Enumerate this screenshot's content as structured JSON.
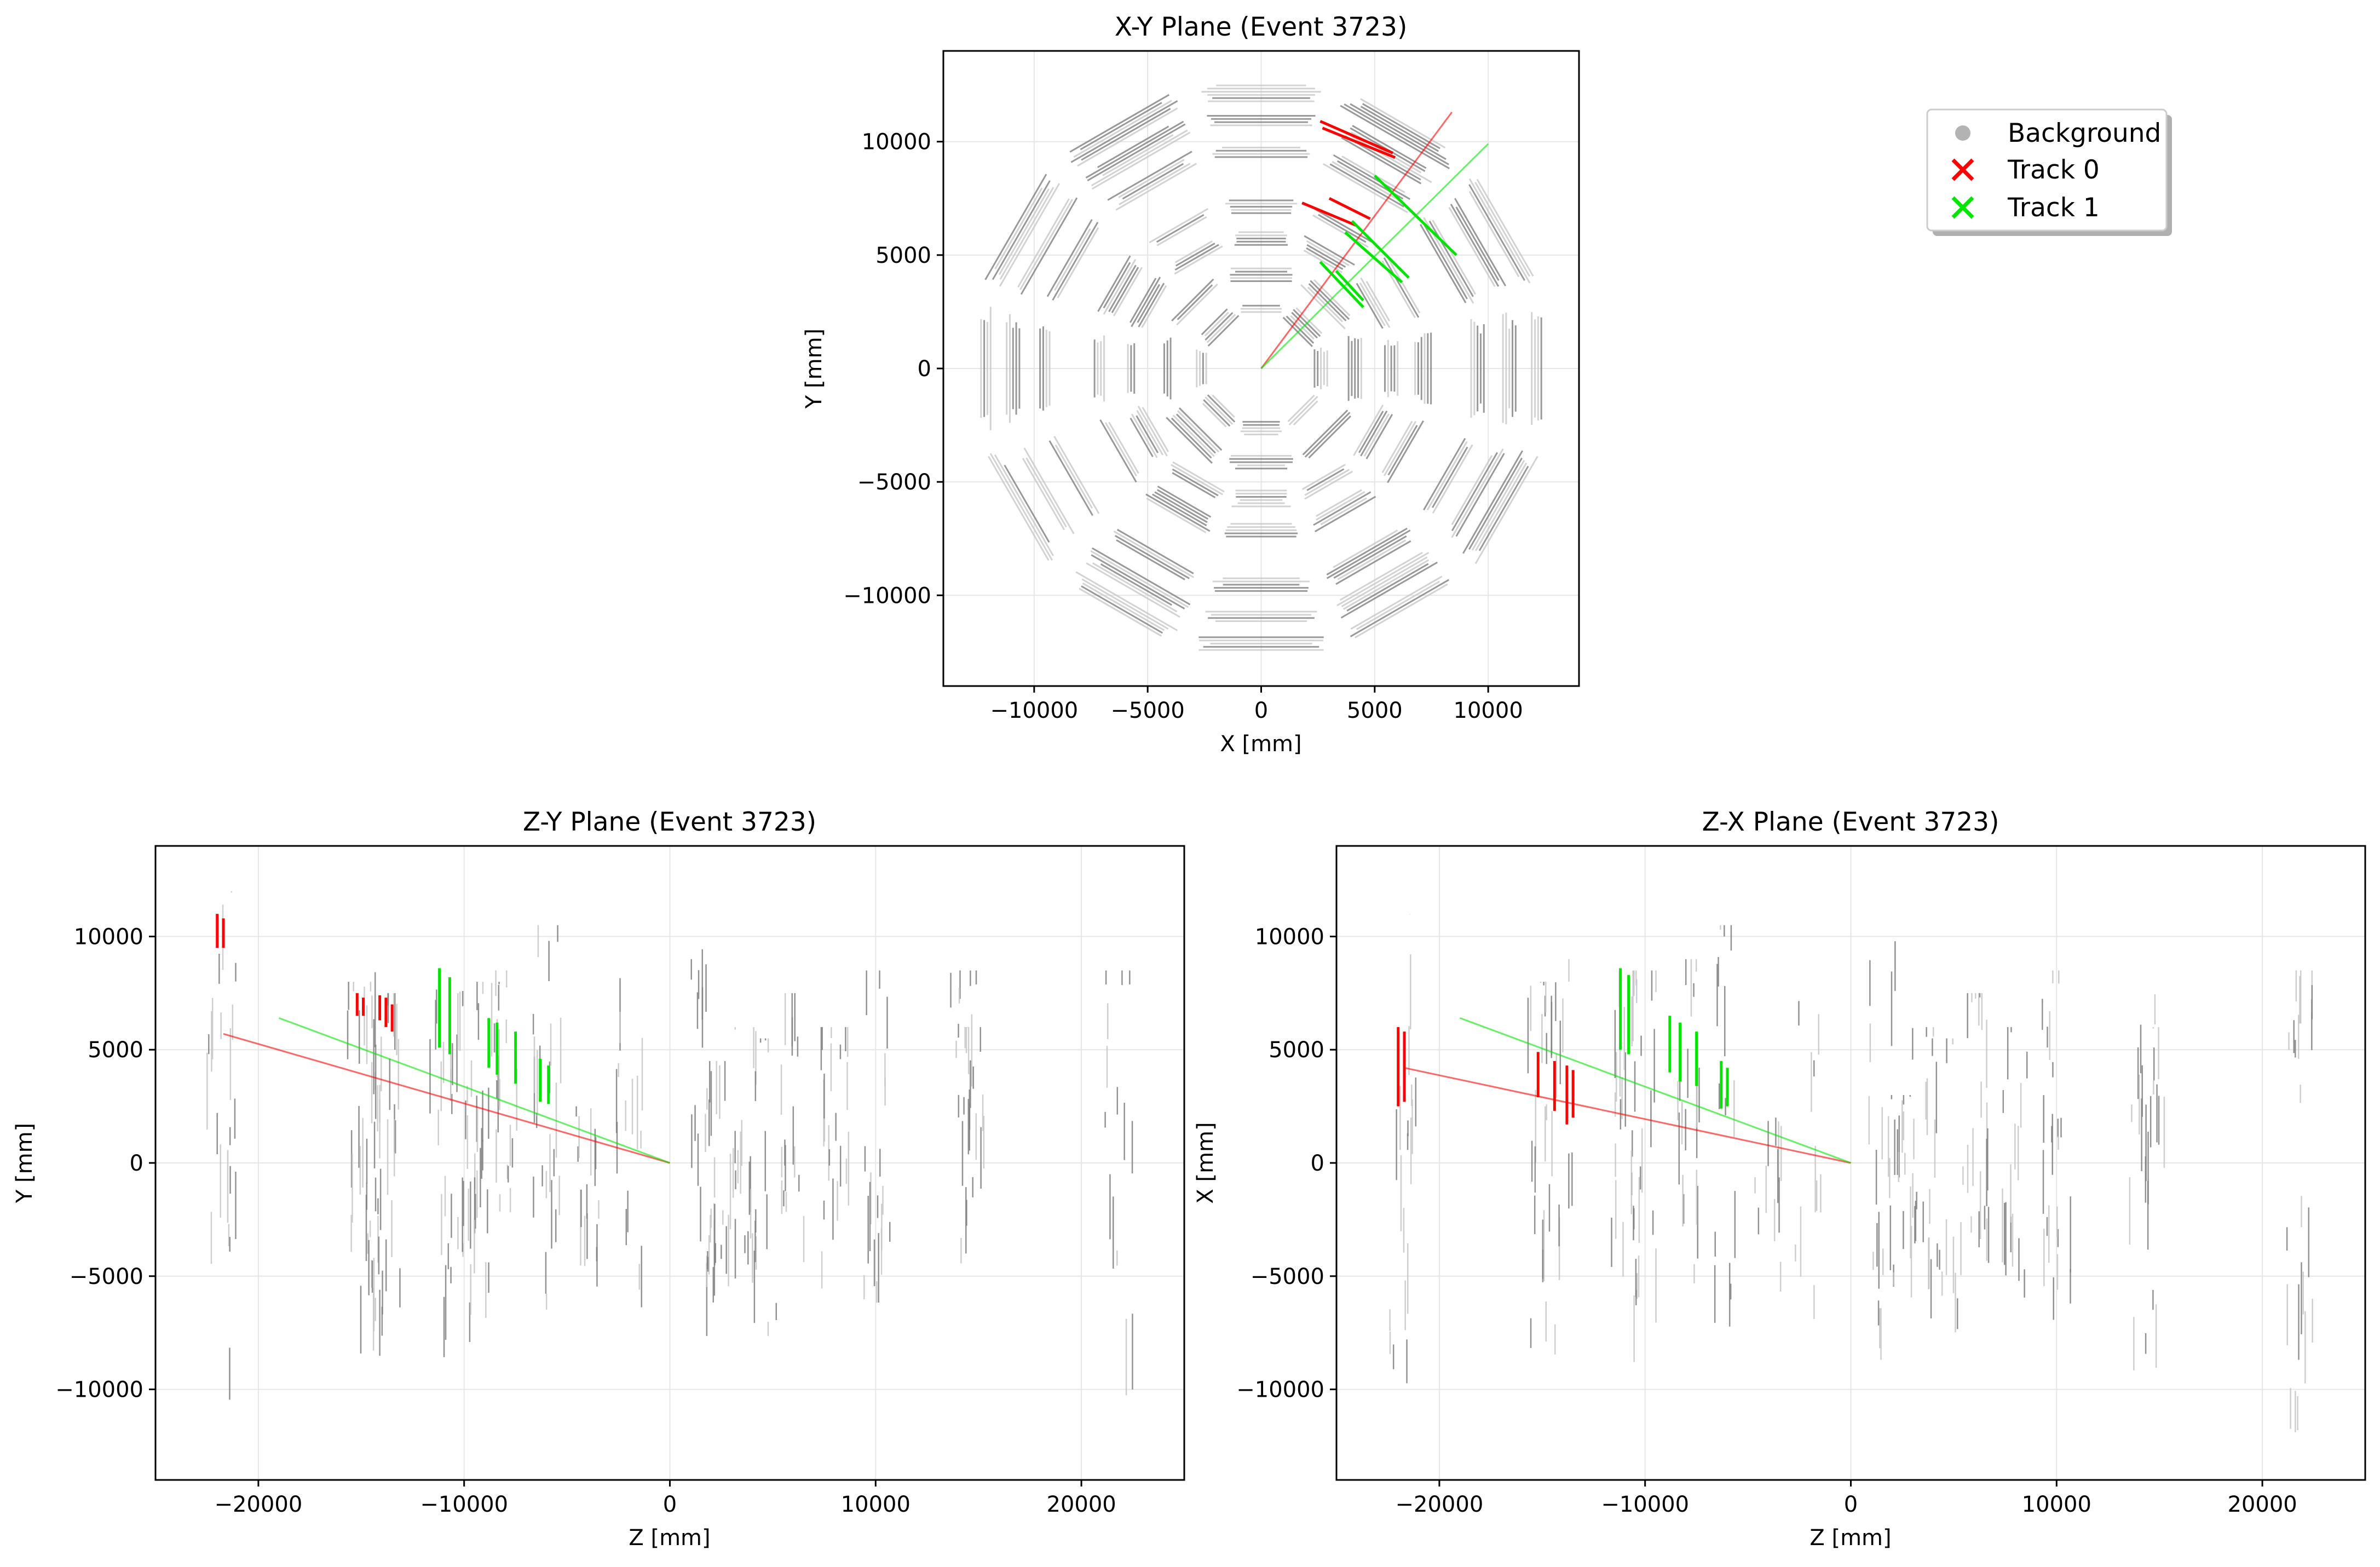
{
  "chart_data": [
    {
      "id": "xy",
      "type": "scatter",
      "title": "X-Y Plane (Event 3723)",
      "xlabel": "X [mm]",
      "ylabel": "Y [mm]",
      "xlim": [
        -14000,
        14000
      ],
      "ylim": [
        -14000,
        14000
      ],
      "xticks": [
        -10000,
        -5000,
        0,
        5000,
        10000
      ],
      "yticks": [
        -10000,
        -5000,
        0,
        5000,
        10000
      ],
      "xtick_labels": [
        "−10000",
        "−5000",
        "0",
        "5000",
        "10000"
      ],
      "ytick_labels": [
        "−10000",
        "−5000",
        "0",
        "5000",
        "10000"
      ],
      "grid": true,
      "background_rings": [
        {
          "n": 8,
          "r": 2700
        },
        {
          "n": 8,
          "r": 4200
        },
        {
          "n": 12,
          "r": 5800
        },
        {
          "n": 12,
          "r": 7200
        },
        {
          "n": 12,
          "r": 9600
        },
        {
          "n": 12,
          "r": 11000
        },
        {
          "n": 12,
          "r": 12200
        }
      ],
      "track_lines": [
        {
          "track": "Track 0",
          "from": [
            0,
            0
          ],
          "to": [
            8400,
            11300
          ]
        },
        {
          "track": "Track 1",
          "from": [
            0,
            0
          ],
          "to": [
            10000,
            9900
          ]
        }
      ],
      "track_segments": [
        {
          "track": "Track 0",
          "x1": 2600,
          "y1": 10900,
          "x2": 5800,
          "y2": 9500
        },
        {
          "track": "Track 0",
          "x1": 2700,
          "y1": 10600,
          "x2": 5900,
          "y2": 9300
        },
        {
          "track": "Track 0",
          "x1": 1800,
          "y1": 7300,
          "x2": 4200,
          "y2": 6300
        },
        {
          "track": "Track 0",
          "x1": 3000,
          "y1": 7500,
          "x2": 4800,
          "y2": 6600
        },
        {
          "track": "Track 1",
          "x1": 5000,
          "y1": 8500,
          "x2": 8600,
          "y2": 5000
        },
        {
          "track": "Track 1",
          "x1": 4000,
          "y1": 6500,
          "x2": 6500,
          "y2": 4000
        },
        {
          "track": "Track 1",
          "x1": 3700,
          "y1": 6000,
          "x2": 6200,
          "y2": 3800
        },
        {
          "track": "Track 1",
          "x1": 2600,
          "y1": 4700,
          "x2": 4500,
          "y2": 2700
        },
        {
          "track": "Track 1",
          "x1": 3300,
          "y1": 4300,
          "x2": 4500,
          "y2": 3000
        }
      ]
    },
    {
      "id": "zy",
      "type": "scatter",
      "title": "Z-Y Plane (Event 3723)",
      "xlabel": "Z [mm]",
      "ylabel": "Y [mm]",
      "xlim": [
        -25000,
        25000
      ],
      "ylim": [
        -14000,
        14000
      ],
      "xticks": [
        -20000,
        -10000,
        0,
        10000,
        20000
      ],
      "yticks": [
        -10000,
        -5000,
        0,
        5000,
        10000
      ],
      "xtick_labels": [
        "−20000",
        "−10000",
        "0",
        "10000",
        "20000"
      ],
      "ytick_labels": [
        "−10000",
        "−5000",
        "0",
        "5000",
        "10000"
      ],
      "grid": true,
      "track_lines": [
        {
          "track": "Track 0",
          "from": [
            0,
            0
          ],
          "to": [
            -21700,
            5700
          ]
        },
        {
          "track": "Track 1",
          "from": [
            0,
            0
          ],
          "to": [
            -19000,
            6400
          ]
        }
      ],
      "track_segments": [
        {
          "track": "Track 0",
          "z": -22000,
          "y1": 9500,
          "y2": 11000
        },
        {
          "track": "Track 0",
          "z": -21700,
          "y1": 9500,
          "y2": 10800
        },
        {
          "track": "Track 0",
          "z": -15200,
          "y1": 6500,
          "y2": 7500
        },
        {
          "track": "Track 0",
          "z": -14900,
          "y1": 6500,
          "y2": 7300
        },
        {
          "track": "Track 0",
          "z": -14100,
          "y1": 6300,
          "y2": 7400
        },
        {
          "track": "Track 0",
          "z": -13800,
          "y1": 6000,
          "y2": 7300
        },
        {
          "track": "Track 0",
          "z": -13500,
          "y1": 5800,
          "y2": 7000
        },
        {
          "track": "Track 1",
          "z": -11200,
          "y1": 5100,
          "y2": 8600
        },
        {
          "track": "Track 1",
          "z": -10700,
          "y1": 4800,
          "y2": 8200
        },
        {
          "track": "Track 1",
          "z": -8800,
          "y1": 4200,
          "y2": 6400
        },
        {
          "track": "Track 1",
          "z": -8400,
          "y1": 3900,
          "y2": 6200
        },
        {
          "track": "Track 1",
          "z": -7500,
          "y1": 3500,
          "y2": 5800
        },
        {
          "track": "Track 1",
          "z": -6300,
          "y1": 2700,
          "y2": 4600
        },
        {
          "track": "Track 1",
          "z": -5900,
          "y1": 2600,
          "y2": 4300
        }
      ],
      "background_columns": [
        {
          "z": -21800,
          "ymin": -10500,
          "ymax": 12000
        },
        {
          "z": -15000,
          "ymin": -9000,
          "ymax": 8000
        },
        {
          "z": -14200,
          "ymin": -9500,
          "ymax": 8500
        },
        {
          "z": -13800,
          "ymin": -8000,
          "ymax": 7500
        },
        {
          "z": -11000,
          "ymin": -9000,
          "ymax": 8500
        },
        {
          "z": -10000,
          "ymin": -8000,
          "ymax": 8500
        },
        {
          "z": -9000,
          "ymin": -7000,
          "ymax": 8000
        },
        {
          "z": -8000,
          "ymin": -6000,
          "ymax": 8500
        },
        {
          "z": -6000,
          "ymin": -8000,
          "ymax": 10500
        },
        {
          "z": -4000,
          "ymin": -6000,
          "ymax": 2500
        },
        {
          "z": -2000,
          "ymin": -7000,
          "ymax": 8500
        },
        {
          "z": 1500,
          "ymin": -9000,
          "ymax": 10500
        },
        {
          "z": 2500,
          "ymin": -6000,
          "ymax": 4500
        },
        {
          "z": 3500,
          "ymin": -7000,
          "ymax": 6000
        },
        {
          "z": 4500,
          "ymin": -8000,
          "ymax": 5500
        },
        {
          "z": 6000,
          "ymin": -5000,
          "ymax": 7500
        },
        {
          "z": 8000,
          "ymin": -6000,
          "ymax": 6000
        },
        {
          "z": 10000,
          "ymin": -7000,
          "ymax": 8500
        },
        {
          "z": 14200,
          "ymin": -5000,
          "ymax": 8500
        },
        {
          "z": 14600,
          "ymin": -4000,
          "ymax": 6000
        },
        {
          "z": 21800,
          "ymin": -10500,
          "ymax": 8500
        }
      ]
    },
    {
      "id": "zx",
      "type": "scatter",
      "title": "Z-X Plane (Event 3723)",
      "xlabel": "Z [mm]",
      "ylabel": "X [mm]",
      "xlim": [
        -25000,
        25000
      ],
      "ylim": [
        -14000,
        14000
      ],
      "xticks": [
        -20000,
        -10000,
        0,
        10000,
        20000
      ],
      "yticks": [
        -10000,
        -5000,
        0,
        5000,
        10000
      ],
      "xtick_labels": [
        "−20000",
        "−10000",
        "0",
        "10000",
        "20000"
      ],
      "ytick_labels": [
        "−10000",
        "−5000",
        "0",
        "5000",
        "10000"
      ],
      "grid": true,
      "track_lines": [
        {
          "track": "Track 0",
          "from": [
            0,
            0
          ],
          "to": [
            -21700,
            4200
          ]
        },
        {
          "track": "Track 1",
          "from": [
            0,
            0
          ],
          "to": [
            -19000,
            6400
          ]
        }
      ],
      "track_segments": [
        {
          "track": "Track 0",
          "z": -22000,
          "y1": 2500,
          "y2": 6000
        },
        {
          "track": "Track 0",
          "z": -21700,
          "y1": 2700,
          "y2": 5800
        },
        {
          "track": "Track 0",
          "z": -15200,
          "y1": 2900,
          "y2": 4900
        },
        {
          "track": "Track 0",
          "z": -14400,
          "y1": 2300,
          "y2": 4500
        },
        {
          "track": "Track 0",
          "z": -13800,
          "y1": 1700,
          "y2": 4300
        },
        {
          "track": "Track 0",
          "z": -13500,
          "y1": 2000,
          "y2": 4100
        },
        {
          "track": "Track 1",
          "z": -11200,
          "y1": 5000,
          "y2": 8600
        },
        {
          "track": "Track 1",
          "z": -10800,
          "y1": 4800,
          "y2": 8300
        },
        {
          "track": "Track 1",
          "z": -8800,
          "y1": 4000,
          "y2": 6500
        },
        {
          "track": "Track 1",
          "z": -8300,
          "y1": 3600,
          "y2": 6200
        },
        {
          "track": "Track 1",
          "z": -7500,
          "y1": 3400,
          "y2": 5800
        },
        {
          "track": "Track 1",
          "z": -6300,
          "y1": 2400,
          "y2": 4500
        },
        {
          "track": "Track 1",
          "z": -6000,
          "y1": 2500,
          "y2": 4200
        }
      ],
      "background_columns": [
        {
          "z": -21800,
          "ymin": -10500,
          "ymax": 11000
        },
        {
          "z": -15000,
          "ymin": -9000,
          "ymax": 8000
        },
        {
          "z": -14200,
          "ymin": -9500,
          "ymax": 9000
        },
        {
          "z": -11000,
          "ymin": -9000,
          "ymax": 8500
        },
        {
          "z": -10000,
          "ymin": -8000,
          "ymax": 8500
        },
        {
          "z": -8000,
          "ymin": -7000,
          "ymax": 9000
        },
        {
          "z": -6000,
          "ymin": -8000,
          "ymax": 10500
        },
        {
          "z": -4000,
          "ymin": -6000,
          "ymax": 2000
        },
        {
          "z": -2000,
          "ymin": -7000,
          "ymax": 8500
        },
        {
          "z": 1500,
          "ymin": -9000,
          "ymax": 10500
        },
        {
          "z": 2500,
          "ymin": -6000,
          "ymax": 3000
        },
        {
          "z": 3500,
          "ymin": -7000,
          "ymax": 6000
        },
        {
          "z": 4500,
          "ymin": -8000,
          "ymax": 5500
        },
        {
          "z": 6000,
          "ymin": -5000,
          "ymax": 7500
        },
        {
          "z": 8000,
          "ymin": -6000,
          "ymax": 6000
        },
        {
          "z": 10000,
          "ymin": -7000,
          "ymax": 8500
        },
        {
          "z": 14200,
          "ymin": -10000,
          "ymax": 8000
        },
        {
          "z": 14600,
          "ymin": -4000,
          "ymax": 6000
        },
        {
          "z": 21800,
          "ymin": -12000,
          "ymax": 8500
        }
      ]
    }
  ],
  "legend": {
    "placement": "top-right",
    "entries": [
      {
        "label": "Background",
        "marker": "dot",
        "color": "#b3b3b3"
      },
      {
        "label": "Track 0",
        "marker": "x",
        "color": "#ff0000"
      },
      {
        "label": "Track 1",
        "marker": "x",
        "color": "#00e600"
      }
    ]
  },
  "colors": {
    "track_0": "#ff0000",
    "track_1": "#00e600",
    "background": "#808080",
    "grid": "#e6e6e6"
  }
}
